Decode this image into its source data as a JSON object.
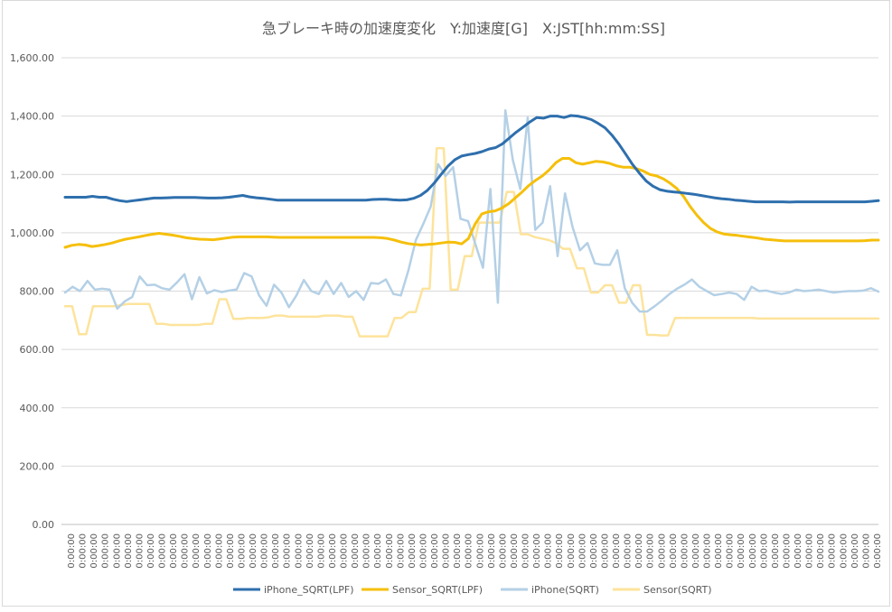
{
  "chart_data": {
    "type": "line",
    "title": "急ブレーキ時の加速度変化　Y:加速度[G]　X:JST[hh:mm:SS]",
    "xlabel": "",
    "ylabel": "",
    "ylim": [
      0,
      1600
    ],
    "y_ticks": [
      "0.00",
      "200.00",
      "400.00",
      "600.00",
      "800.00",
      "1,000.00",
      "1,200.00",
      "1,400.00",
      "1,600.00"
    ],
    "y_tick_values": [
      0,
      200,
      400,
      600,
      800,
      1000,
      1200,
      1400,
      1600
    ],
    "x_tick_label": "0:00:00",
    "x_tick_count": 72,
    "grid": true,
    "legend_position": "bottom",
    "series": [
      {
        "name": "iPhone_SQRT(LPF)",
        "color": "#2e6fad",
        "width": 3,
        "values": [
          1122,
          1122,
          1122,
          1122,
          1125,
          1122,
          1122,
          1115,
          1110,
          1107,
          1110,
          1113,
          1116,
          1119,
          1119,
          1120,
          1121,
          1121,
          1121,
          1121,
          1120,
          1119,
          1119,
          1120,
          1122,
          1125,
          1128,
          1123,
          1120,
          1118,
          1115,
          1112,
          1112,
          1112,
          1112,
          1112,
          1112,
          1112,
          1112,
          1112,
          1112,
          1112,
          1112,
          1112,
          1112,
          1114,
          1115,
          1115,
          1113,
          1112,
          1113,
          1118,
          1128,
          1145,
          1170,
          1200,
          1228,
          1250,
          1263,
          1268,
          1272,
          1278,
          1287,
          1292,
          1305,
          1325,
          1345,
          1362,
          1380,
          1395,
          1393,
          1400,
          1400,
          1395,
          1402,
          1400,
          1395,
          1388,
          1375,
          1360,
          1335,
          1305,
          1270,
          1235,
          1205,
          1178,
          1160,
          1148,
          1143,
          1140,
          1138,
          1135,
          1132,
          1128,
          1124,
          1120,
          1117,
          1115,
          1112,
          1110,
          1108,
          1106,
          1106,
          1106,
          1106,
          1106,
          1105,
          1106,
          1106,
          1106,
          1106,
          1106,
          1106,
          1106,
          1106,
          1106,
          1106,
          1106,
          1108,
          1110
        ]
      },
      {
        "name": "Sensor_SQRT(LPF)",
        "color": "#f5bf0b",
        "width": 3,
        "values": [
          950,
          957,
          960,
          958,
          953,
          956,
          960,
          965,
          972,
          978,
          982,
          986,
          991,
          995,
          998,
          995,
          992,
          988,
          983,
          980,
          978,
          977,
          976,
          979,
          982,
          985,
          986,
          986,
          986,
          986,
          986,
          985,
          984,
          984,
          984,
          984,
          984,
          984,
          984,
          984,
          984,
          984,
          984,
          984,
          984,
          984,
          984,
          983,
          980,
          975,
          968,
          963,
          960,
          958,
          960,
          962,
          965,
          968,
          967,
          962,
          980,
          1030,
          1065,
          1072,
          1075,
          1085,
          1100,
          1120,
          1140,
          1162,
          1180,
          1195,
          1215,
          1240,
          1255,
          1255,
          1240,
          1235,
          1240,
          1245,
          1243,
          1238,
          1230,
          1225,
          1225,
          1220,
          1212,
          1200,
          1195,
          1185,
          1170,
          1152,
          1125,
          1090,
          1060,
          1035,
          1015,
          1003,
          996,
          993,
          991,
          988,
          985,
          982,
          978,
          976,
          974,
          972,
          972,
          972,
          972,
          972,
          972,
          972,
          972,
          972,
          972,
          972,
          972,
          973,
          975,
          975
        ]
      },
      {
        "name": "iPhone(SQRT)",
        "color": "#b4d0e6",
        "width": 2.5,
        "values": [
          795,
          815,
          800,
          835,
          805,
          808,
          805,
          740,
          765,
          780,
          850,
          820,
          822,
          810,
          805,
          830,
          858,
          772,
          848,
          792,
          803,
          797,
          802,
          806,
          862,
          850,
          785,
          750,
          822,
          795,
          745,
          785,
          838,
          800,
          790,
          835,
          790,
          828,
          780,
          800,
          770,
          828,
          825,
          840,
          790,
          785,
          870,
          975,
          1030,
          1090,
          1235,
          1195,
          1225,
          1048,
          1040,
          960,
          880,
          1150,
          760,
          1420,
          1250,
          1150,
          1395,
          1010,
          1035,
          1160,
          920,
          1135,
          1020,
          940,
          965,
          895,
          890,
          890,
          940,
          810,
          760,
          730,
          730,
          748,
          768,
          790,
          808,
          822,
          840,
          815,
          800,
          786,
          790,
          795,
          790,
          770,
          815,
          800,
          802,
          795,
          790,
          795,
          805,
          800,
          802,
          805,
          800,
          795,
          798,
          800,
          800,
          802,
          810,
          798
        ]
      },
      {
        "name": "Sensor(SQRT)",
        "color": "#fde39b",
        "width": 2.5,
        "values": [
          748,
          748,
          652,
          652,
          748,
          748,
          748,
          748,
          752,
          756,
          756,
          756,
          756,
          688,
          688,
          684,
          684,
          684,
          684,
          684,
          688,
          688,
          772,
          772,
          705,
          705,
          708,
          708,
          708,
          710,
          716,
          716,
          712,
          712,
          712,
          712,
          712,
          716,
          716,
          716,
          712,
          712,
          645,
          645,
          645,
          645,
          645,
          708,
          708,
          728,
          728,
          808,
          808,
          1290,
          1290,
          805,
          805,
          920,
          920,
          1035,
          1035,
          1035,
          1035,
          1140,
          1140,
          995,
          995,
          985,
          980,
          975,
          965,
          945,
          945,
          878,
          878,
          795,
          795,
          820,
          820,
          760,
          760,
          820,
          820,
          650,
          650,
          648,
          648,
          708,
          708,
          708,
          708,
          708,
          708,
          708,
          708,
          708,
          708,
          708,
          708,
          706,
          706,
          706,
          706,
          706,
          706,
          706,
          706,
          706,
          706,
          706,
          706,
          706,
          706,
          706,
          706,
          706,
          706
        ]
      }
    ]
  }
}
